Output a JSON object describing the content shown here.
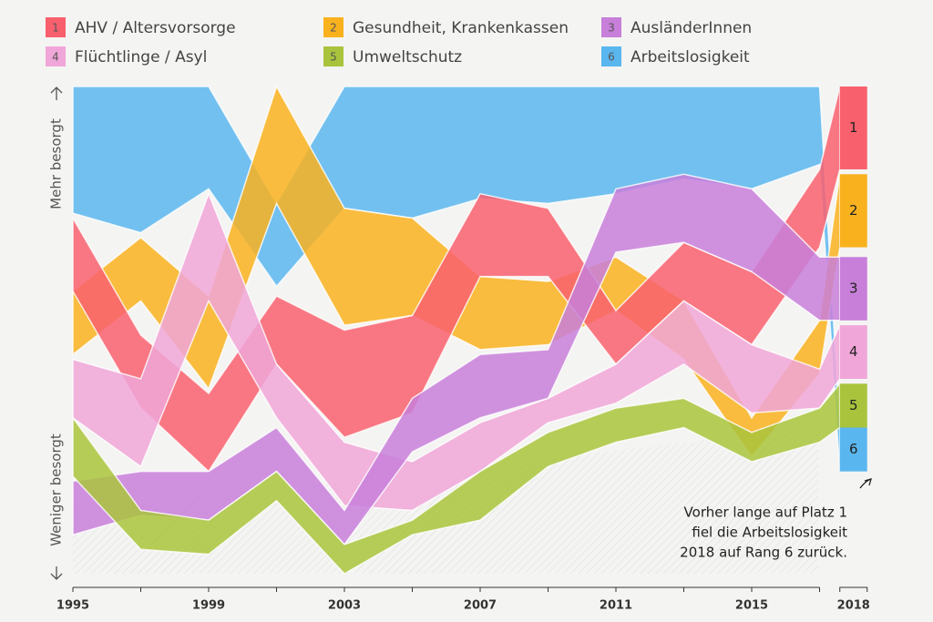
{
  "chart_data": {
    "type": "ribbon",
    "y_label_top": "Mehr besorgt",
    "y_label_bottom": "Weniger besorgt",
    "annotation": [
      "Vorher lange auf Platz 1",
      "fiel die Arbeitslosigkeit",
      "2018 auf Rang 6 zurück."
    ],
    "x": [
      1995,
      1997,
      1999,
      2001,
      2003,
      2005,
      2007,
      2009,
      2011,
      2013,
      2015,
      2017,
      2018
    ],
    "xticks": [
      1995,
      1999,
      2003,
      2007,
      2011,
      2015,
      2018
    ],
    "ylim": [
      0,
      100
    ],
    "series": [
      {
        "name": "Arbeitslosigkeit",
        "rank": 6,
        "color": "#5ab6ef",
        "upper": [
          100,
          100,
          100,
          76,
          100,
          100,
          100,
          100,
          100,
          100,
          100,
          100,
          30
        ],
        "lower": [
          74,
          70,
          79,
          59,
          75,
          73,
          77,
          76,
          78,
          81,
          79,
          84,
          21
        ]
      },
      {
        "name": "Gesundheit, Krankenkassen",
        "rank": 2,
        "color": "#f9b21e",
        "upper": [
          58,
          69,
          57,
          100,
          75,
          73,
          61,
          60,
          65,
          56,
          32,
          52,
          82
        ],
        "lower": [
          45,
          56,
          38,
          76,
          51,
          53,
          46,
          47,
          54,
          44,
          24,
          41,
          67
        ]
      },
      {
        "name": "AHV / Altersvorsorge",
        "rank": 1,
        "color": "#f9606e",
        "upper": [
          73,
          49,
          37,
          57,
          50,
          53,
          78,
          75,
          54,
          68,
          62,
          83,
          100
        ],
        "lower": [
          58,
          34,
          21,
          43,
          28,
          33,
          61,
          61,
          43,
          56,
          47,
          67,
          83
        ]
      },
      {
        "name": "Flüchtlinge / Asyl",
        "rank": 4,
        "color": "#f0a6d8",
        "upper": [
          44,
          40,
          78,
          43,
          27,
          23,
          31,
          36,
          43,
          56,
          47,
          42,
          51
        ],
        "lower": [
          32,
          22,
          56,
          32,
          14,
          13,
          21,
          31,
          35,
          43,
          33,
          34,
          40
        ]
      },
      {
        "name": "AusländerInnen",
        "rank": 3,
        "color": "#c87fda",
        "upper": [
          19,
          21,
          21,
          30,
          13,
          36,
          45,
          46,
          79,
          82,
          79,
          65,
          65
        ],
        "lower": [
          8,
          12,
          11,
          21,
          6,
          25,
          32,
          36,
          66,
          68,
          62,
          52,
          52
        ]
      },
      {
        "name": "Umweltschutz",
        "rank": 5,
        "color": "#a9c43c",
        "upper": [
          32,
          13,
          11,
          21,
          6,
          11,
          21,
          29,
          34,
          36,
          29,
          34,
          39
        ],
        "lower": [
          20,
          5,
          4,
          15,
          0,
          8,
          11,
          22,
          27,
          30,
          23,
          27,
          30
        ]
      }
    ]
  }
}
